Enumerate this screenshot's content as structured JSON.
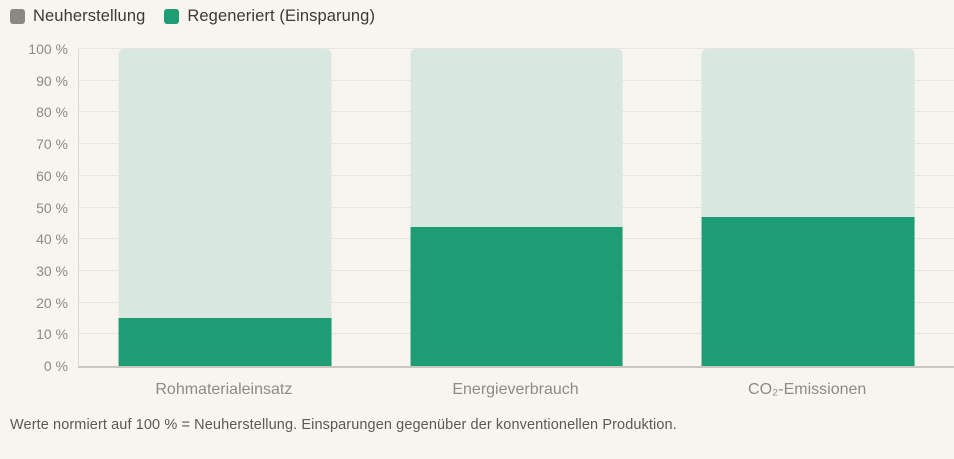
{
  "legend": {
    "items": [
      {
        "label": "Neuherstellung",
        "color": "#8a8882"
      },
      {
        "label": "Regeneriert (Einsparung)",
        "color": "#1e9c74"
      }
    ]
  },
  "chart_data": {
    "type": "bar",
    "subtype": "normalized-overlay",
    "categories": [
      "Rohmaterialeinsatz",
      "Energieverbrauch",
      "CO₂-Emissionen"
    ],
    "series": [
      {
        "name": "Neuherstellung",
        "values": [
          100,
          100,
          100
        ],
        "color": "#d8e7df"
      },
      {
        "name": "Regeneriert (Einsparung)",
        "values": [
          15,
          44,
          47
        ],
        "color": "#1e9c74"
      }
    ],
    "title": "",
    "xlabel": "",
    "ylabel": "",
    "ylim": [
      0,
      100
    ],
    "y_tick_step": 10,
    "y_tick_suffix": " %",
    "y_ticks": [
      "0 %",
      "10 %",
      "20 %",
      "30 %",
      "40 %",
      "50 %",
      "60 %",
      "70 %",
      "80 %",
      "90 %",
      "100 %"
    ],
    "grid": true,
    "legend_position": "top-left"
  },
  "footnote": "Werte normiert auf 100 % = Neuherstellung. Einsparungen gegenüber der konventionellen Produktion.",
  "colors": {
    "background": "#f8f5f0",
    "gridline": "#e8e5de",
    "axis_line": "#c9c7c0",
    "y_axis_line": "#dcd9d1",
    "bar_green": "#1e9c74",
    "bar_light_green": "#d8e7df",
    "legend_gray": "#8a8882",
    "tick_text": "#8d8b83",
    "legend_text": "#3b3a36",
    "footnote_text": "#5b5953"
  }
}
